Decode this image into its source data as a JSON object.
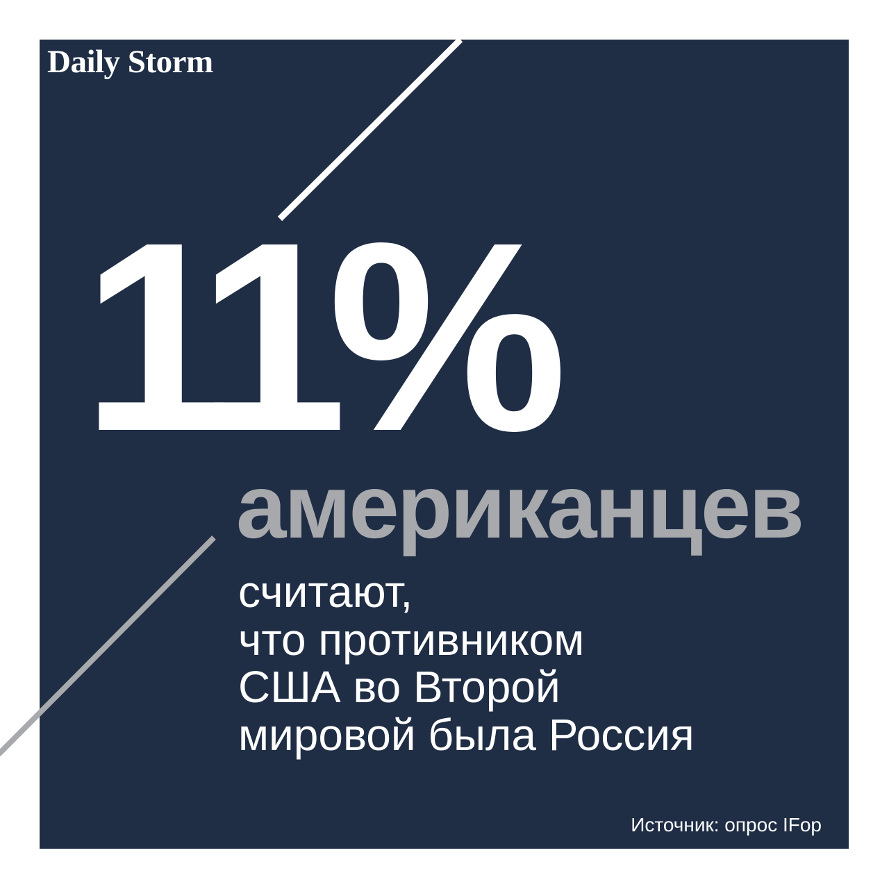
{
  "brand": {
    "logo_text": "Daily Storm"
  },
  "headline": {
    "value": "11%",
    "subject": "американцев"
  },
  "statement_lines": [
    "считают,",
    "что противником",
    "США во Второй",
    "мировой была Россия"
  ],
  "source": "Источник: опрос IFop",
  "colors": {
    "background": "#ffffff",
    "panel": "#1f2d45",
    "accent_white": "#ffffff",
    "accent_gray": "#a7a9ac"
  }
}
